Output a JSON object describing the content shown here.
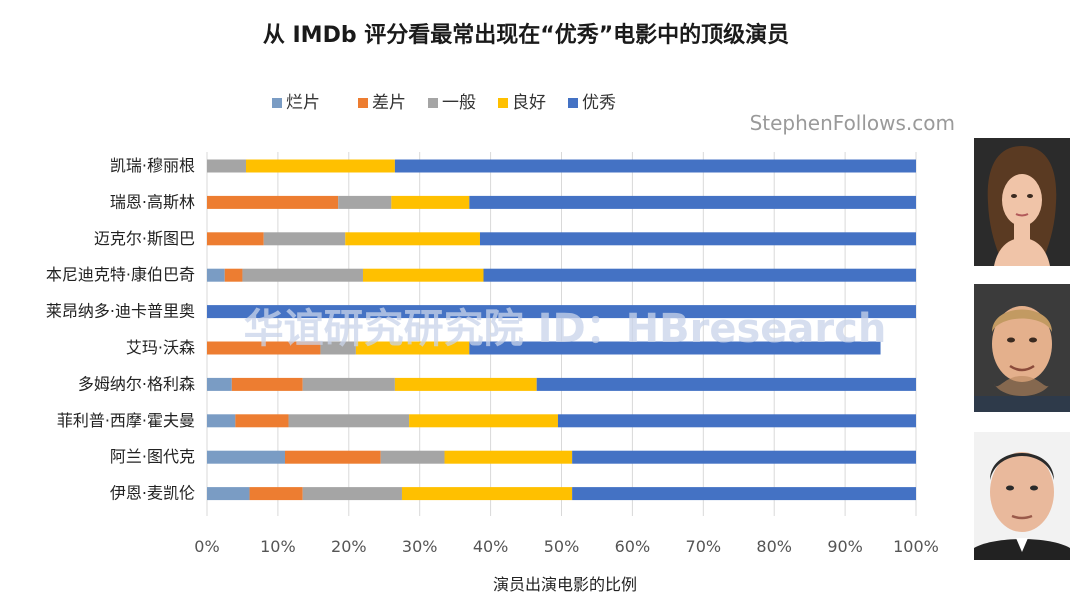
{
  "chart_data": {
    "type": "bar",
    "orientation": "horizontal",
    "stacked": true,
    "title": "从 IMDb 评分看最常出现在“优秀”电影中的顶级演员",
    "xlabel": "演员出演电影的比例",
    "ylabel": "",
    "xlim": [
      0,
      100
    ],
    "xticks": [
      "0%",
      "10%",
      "20%",
      "30%",
      "40%",
      "50%",
      "60%",
      "70%",
      "80%",
      "90%",
      "100%"
    ],
    "legend_position": "top",
    "grid": true,
    "categories": [
      "凯瑞·穆丽根",
      "瑞恩·高斯林",
      "迈克尔·斯图巴",
      "本尼迪克特·康伯巴奇",
      "莱昂纳多·迪卡普里奥",
      "艾玛·沃森",
      "多姆纳尔·格利森",
      "菲利普·西摩·霍夫曼",
      "阿兰·图代克",
      "伊恩·麦凯伦"
    ],
    "series": [
      {
        "name": "烂片",
        "color": "#7a9cc4",
        "values": [
          0,
          0,
          0,
          2.5,
          0,
          0,
          3.5,
          4,
          11,
          6
        ]
      },
      {
        "name": "差片",
        "color": "#ed7d31",
        "values": [
          0,
          18.5,
          8,
          2.5,
          0,
          16,
          10,
          7.5,
          13.5,
          7.5
        ]
      },
      {
        "name": "一般",
        "color": "#a5a5a5",
        "values": [
          5.5,
          7.5,
          11.5,
          17,
          0,
          5,
          13,
          17,
          9,
          14
        ]
      },
      {
        "name": "良好",
        "color": "#ffc000",
        "values": [
          21,
          11,
          19,
          17,
          0,
          16,
          20,
          21,
          18,
          24
        ]
      },
      {
        "name": "优秀",
        "color": "#4472c4",
        "values": [
          73.5,
          63,
          61.5,
          61,
          100,
          58,
          53.5,
          50.5,
          48.5,
          48.5
        ]
      }
    ]
  },
  "watermarks": {
    "site": "StephenFollows.com",
    "overlay": "华谊研究研究院 ID：HBresearch"
  },
  "portraits": [
    {
      "name": "woman-portrait",
      "bg": "#2b2b2b",
      "skin": "#f0c4a8",
      "hair": "#5a3a22"
    },
    {
      "name": "ryan-portrait",
      "bg": "#3b3b3b",
      "skin": "#e4b08c",
      "hair": "#c29a62"
    },
    {
      "name": "man-portrait",
      "bg": "#f2f2f2",
      "skin": "#e9b99c",
      "hair": "#2a2a2a"
    }
  ]
}
